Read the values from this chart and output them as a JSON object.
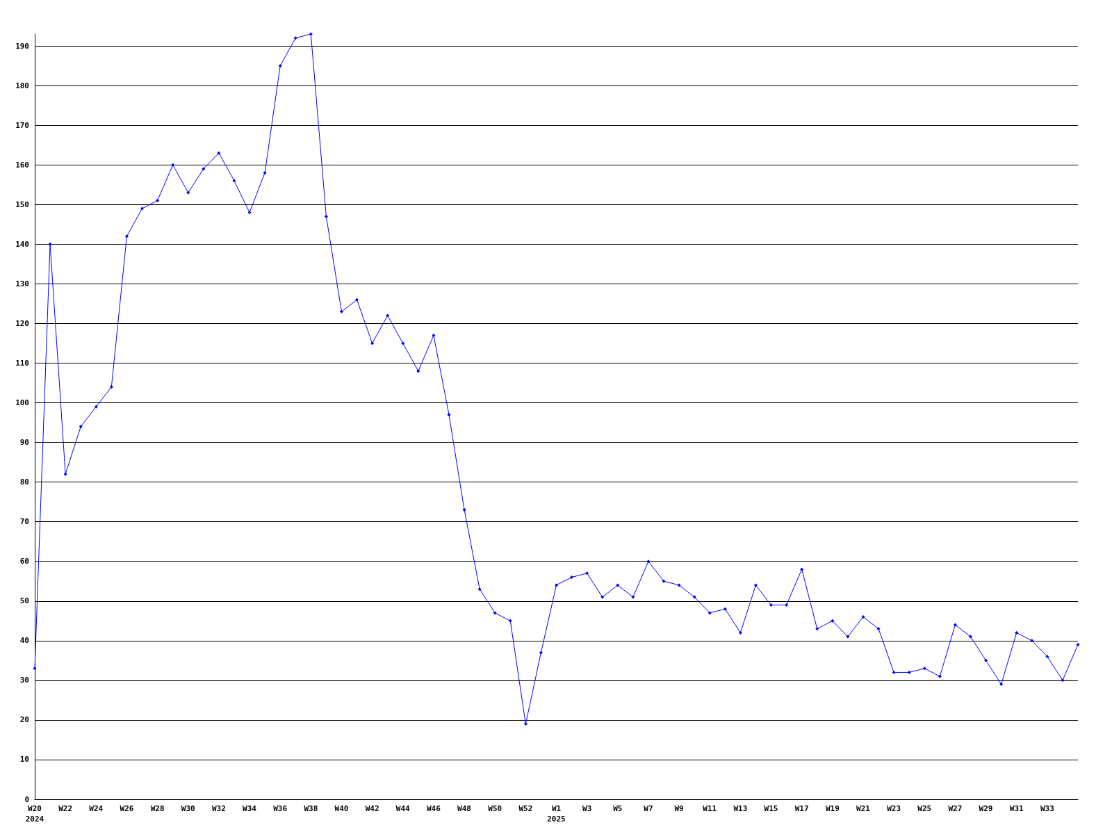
{
  "chart_data": {
    "type": "line",
    "categories": [
      "W20\n2024",
      null,
      "W22",
      null,
      "W24",
      null,
      "W26",
      null,
      "W28",
      null,
      "W30",
      null,
      "W32",
      null,
      "W34",
      null,
      "W36",
      null,
      "W38",
      null,
      "W40",
      null,
      "W42",
      null,
      "W44",
      null,
      "W46",
      null,
      "W48",
      null,
      "W50",
      null,
      "W52",
      null,
      "W1\n2025",
      null,
      "W3",
      null,
      "W5",
      null,
      "W7",
      null,
      "W9",
      null,
      "W11",
      null,
      "W13",
      null,
      "W15",
      null,
      "W17",
      null,
      "W19",
      null,
      "W21",
      null,
      "W23",
      null,
      "W25",
      null,
      "W27",
      null,
      "W29",
      null,
      "W31",
      null,
      "W33",
      null,
      null
    ],
    "series": [
      {
        "color": "#0000ff",
        "values": [
          33,
          140,
          82,
          94,
          99,
          104,
          142,
          149,
          151,
          160,
          153,
          159,
          163,
          156,
          148,
          158,
          185,
          192,
          193,
          147,
          123,
          126,
          115,
          122,
          115,
          108,
          117,
          97,
          73,
          53,
          47,
          45,
          19,
          37,
          54,
          56,
          57,
          51,
          54,
          51,
          60,
          55,
          54,
          51,
          47,
          48,
          42,
          54,
          49,
          49,
          58,
          43,
          45,
          41,
          46,
          43,
          32,
          32,
          33,
          31,
          44,
          41,
          35,
          29,
          42,
          40,
          36,
          30,
          39
        ]
      }
    ],
    "ylim": [
      0,
      193
    ],
    "yticks": [
      0,
      10,
      20,
      30,
      40,
      50,
      60,
      70,
      80,
      90,
      100,
      110,
      120,
      130,
      140,
      150,
      160,
      170,
      180,
      190
    ],
    "grid": "y",
    "marker": "diamond",
    "line_style": "solid"
  }
}
